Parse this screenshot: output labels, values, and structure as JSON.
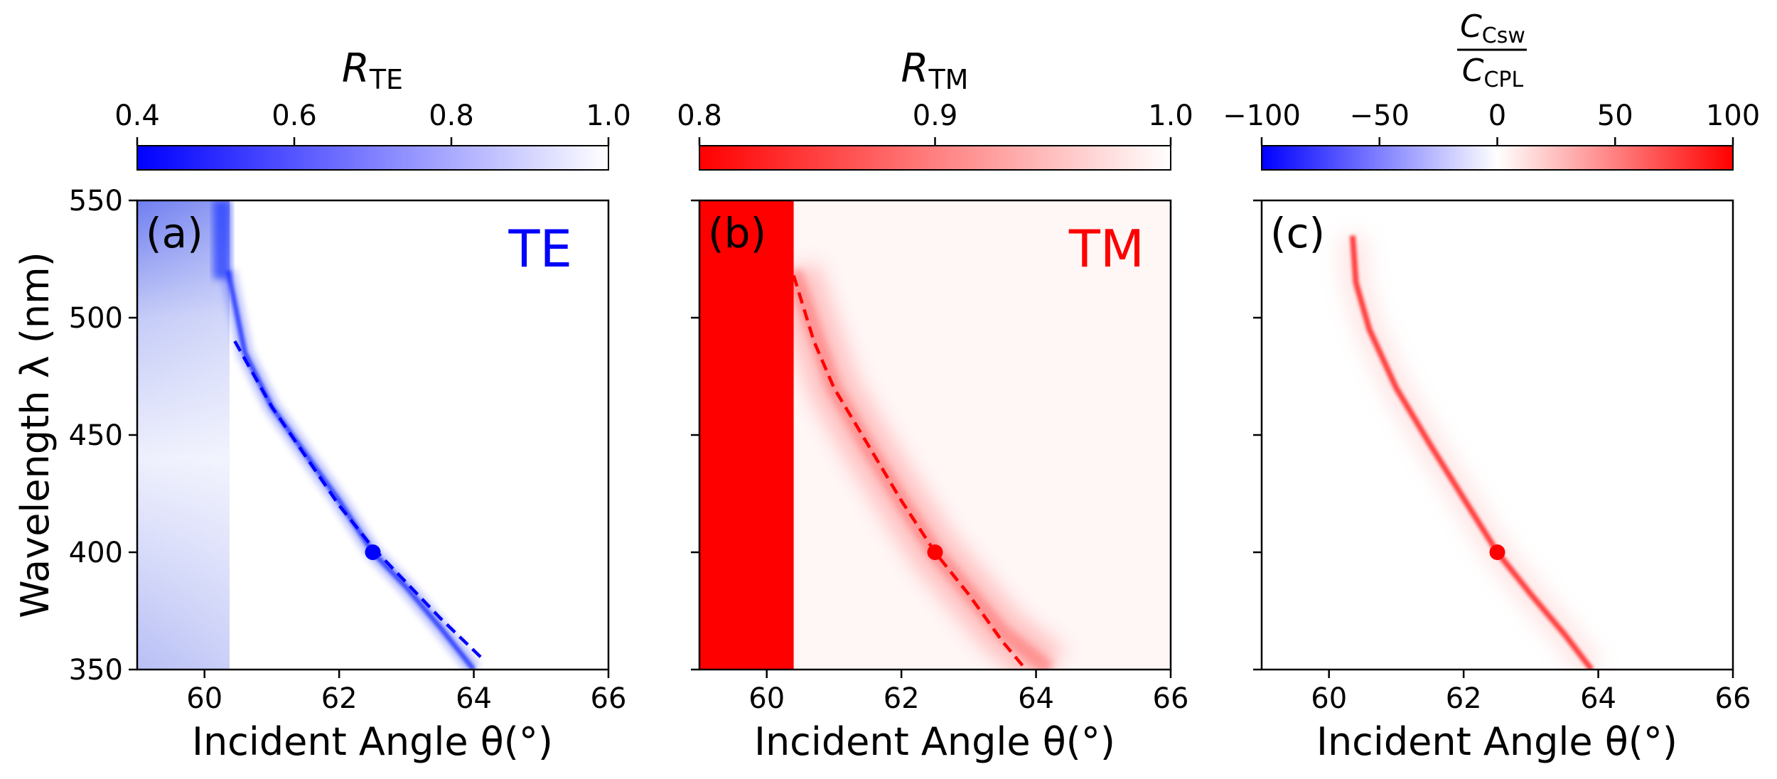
{
  "chart_data": {
    "type": "heatmap",
    "xlabel": "Incident Angle θ(°)",
    "ylabel": "Wavelength λ (nm)",
    "xlim": [
      59,
      66
    ],
    "ylim": [
      350,
      550
    ],
    "xticks": [
      "60",
      "62",
      "64",
      "66"
    ],
    "yticks": [
      "350",
      "400",
      "450",
      "500",
      "550"
    ],
    "marker": {
      "theta": 62.5,
      "lambda": 400
    },
    "panels": [
      {
        "label": "(a)",
        "mode": "TE",
        "mode_color": "#0000ff",
        "colorbar": {
          "title_main": "R",
          "title_sub": "TE",
          "range": [
            0.4,
            1.0
          ],
          "ticks": [
            "0.4",
            "0.6",
            "0.8",
            "1.0"
          ],
          "colors": [
            "#0000ff",
            "#ffffff"
          ]
        },
        "resonance_curve": [
          {
            "theta": 60.35,
            "lambda": 520
          },
          {
            "theta": 60.6,
            "lambda": 485
          },
          {
            "theta": 61.0,
            "lambda": 462
          },
          {
            "theta": 61.5,
            "lambda": 442
          },
          {
            "theta": 62.0,
            "lambda": 422
          },
          {
            "theta": 62.5,
            "lambda": 400
          },
          {
            "theta": 63.0,
            "lambda": 385
          },
          {
            "theta": 63.5,
            "lambda": 368
          },
          {
            "theta": 64.0,
            "lambda": 350
          }
        ],
        "dashed_curve": [
          {
            "theta": 60.45,
            "lambda": 490
          },
          {
            "theta": 61.0,
            "lambda": 462
          },
          {
            "theta": 61.5,
            "lambda": 441
          },
          {
            "theta": 62.0,
            "lambda": 420
          },
          {
            "theta": 62.5,
            "lambda": 402
          },
          {
            "theta": 63.0,
            "lambda": 387
          },
          {
            "theta": 63.5,
            "lambda": 372
          },
          {
            "theta": 64.15,
            "lambda": 354
          }
        ]
      },
      {
        "label": "(b)",
        "mode": "TM",
        "mode_color": "#ff0000",
        "colorbar": {
          "title_main": "R",
          "title_sub": "TM",
          "range": [
            0.8,
            1.0
          ],
          "ticks": [
            "0.8",
            "0.9",
            "1.0"
          ],
          "colors": [
            "#ff0000",
            "#ffffff"
          ]
        },
        "saturated_region": {
          "theta_max": 60.4
        },
        "resonance_curve": [
          {
            "theta": 60.4,
            "lambda": 520
          },
          {
            "theta": 61.0,
            "lambda": 470
          },
          {
            "theta": 61.5,
            "lambda": 445
          },
          {
            "theta": 62.0,
            "lambda": 422
          },
          {
            "theta": 62.5,
            "lambda": 400
          },
          {
            "theta": 63.0,
            "lambda": 383
          },
          {
            "theta": 63.5,
            "lambda": 366
          },
          {
            "theta": 64.2,
            "lambda": 350
          }
        ],
        "dashed_curve": [
          {
            "theta": 60.4,
            "lambda": 518
          },
          {
            "theta": 60.7,
            "lambda": 490
          },
          {
            "theta": 61.0,
            "lambda": 470
          },
          {
            "theta": 61.5,
            "lambda": 446
          },
          {
            "theta": 62.0,
            "lambda": 422
          },
          {
            "theta": 62.5,
            "lambda": 400
          },
          {
            "theta": 63.0,
            "lambda": 382
          },
          {
            "theta": 63.5,
            "lambda": 362
          },
          {
            "theta": 63.85,
            "lambda": 350
          }
        ]
      },
      {
        "label": "(c)",
        "mode": "",
        "mode_color": "#000000",
        "colorbar": {
          "title_num_main": "C",
          "title_num_sub": "Csw",
          "title_den_main": "C",
          "title_den_sub": "CPL",
          "range": [
            -100,
            100
          ],
          "ticks": [
            "−100",
            "−50",
            "0",
            "50",
            "100"
          ],
          "colors": [
            "#0000ff",
            "#ffffff",
            "#ff0000"
          ]
        },
        "resonance_curve": [
          {
            "theta": 60.35,
            "lambda": 535
          },
          {
            "theta": 60.4,
            "lambda": 515
          },
          {
            "theta": 60.6,
            "lambda": 495
          },
          {
            "theta": 61.0,
            "lambda": 470
          },
          {
            "theta": 61.5,
            "lambda": 446
          },
          {
            "theta": 62.0,
            "lambda": 423
          },
          {
            "theta": 62.5,
            "lambda": 400
          },
          {
            "theta": 63.0,
            "lambda": 382
          },
          {
            "theta": 63.5,
            "lambda": 365
          },
          {
            "theta": 63.9,
            "lambda": 350
          }
        ]
      }
    ]
  }
}
